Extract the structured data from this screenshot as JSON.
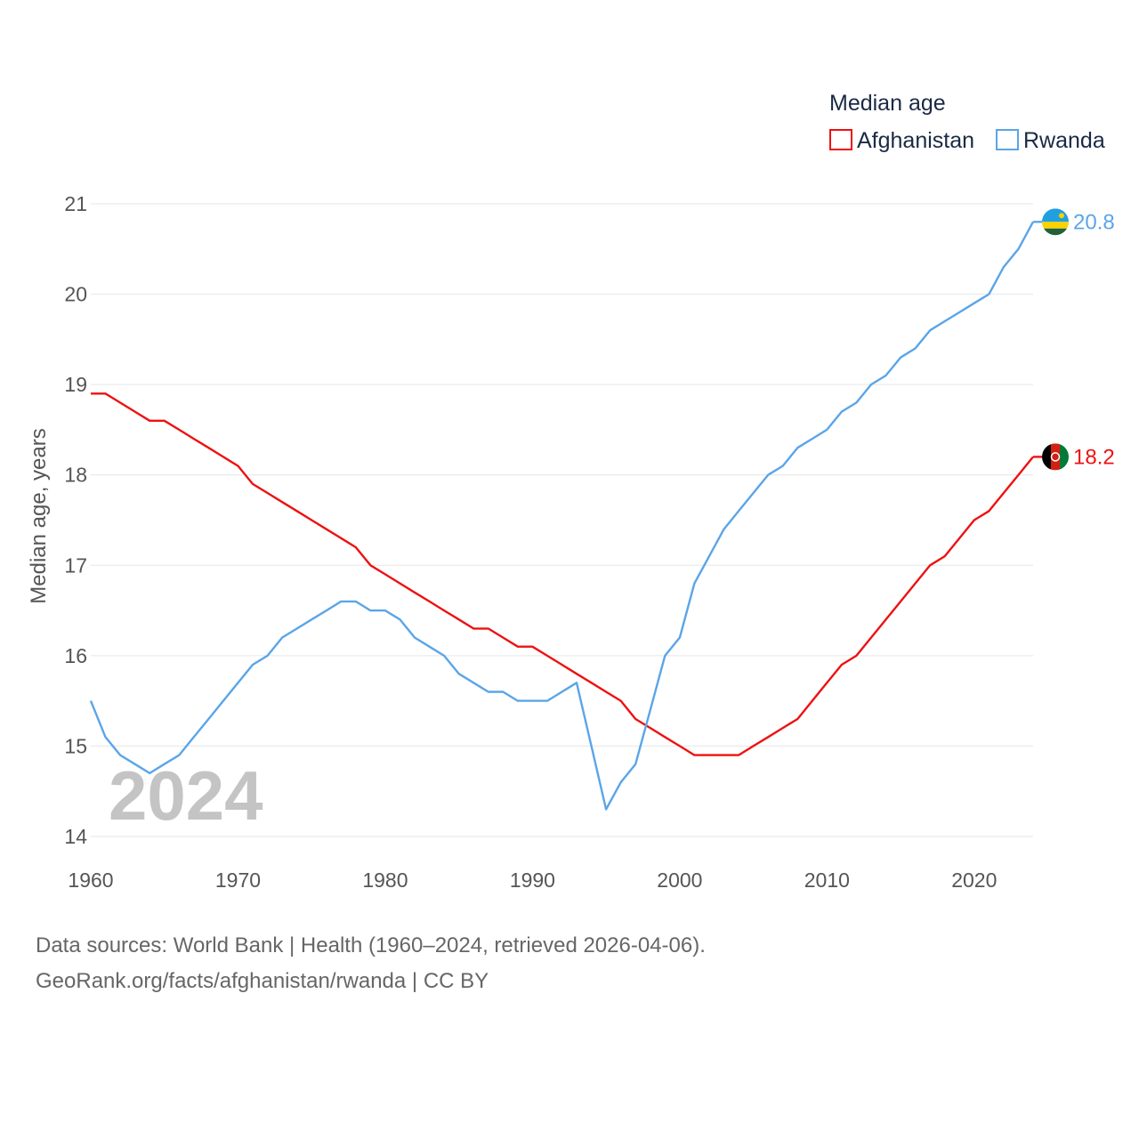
{
  "colors": {
    "afghanistan": "#ee1111",
    "rwanda": "#5aa5e8",
    "grid": "#e6e6e6",
    "text": "#555555",
    "watermark": "#c4c4c4"
  },
  "chart_data": {
    "type": "line",
    "title": "Median age",
    "ylabel": "Median age, years",
    "xlabel": "",
    "xlim": [
      1960,
      2024
    ],
    "ylim": [
      14,
      21
    ],
    "x_ticks": [
      1960,
      1970,
      1980,
      1990,
      2000,
      2010,
      2020
    ],
    "y_ticks": [
      14,
      15,
      16,
      17,
      18,
      19,
      20,
      21
    ],
    "grid": true,
    "legend_position": "top-right",
    "year_label": "2024",
    "x": [
      1960,
      1961,
      1962,
      1963,
      1964,
      1965,
      1966,
      1967,
      1968,
      1969,
      1970,
      1971,
      1972,
      1973,
      1974,
      1975,
      1976,
      1977,
      1978,
      1979,
      1980,
      1981,
      1982,
      1983,
      1984,
      1985,
      1986,
      1987,
      1988,
      1989,
      1990,
      1991,
      1992,
      1993,
      1994,
      1995,
      1996,
      1997,
      1998,
      1999,
      2000,
      2001,
      2002,
      2003,
      2004,
      2005,
      2006,
      2007,
      2008,
      2009,
      2010,
      2011,
      2012,
      2013,
      2014,
      2015,
      2016,
      2017,
      2018,
      2019,
      2020,
      2021,
      2022,
      2023,
      2024
    ],
    "series": [
      {
        "name": "Afghanistan",
        "color": "#ee1111",
        "end_label": "18.2",
        "flag_icon": "afghanistan-flag-icon",
        "values": [
          18.9,
          18.9,
          18.8,
          18.7,
          18.6,
          18.6,
          18.5,
          18.4,
          18.3,
          18.2,
          18.1,
          17.9,
          17.8,
          17.7,
          17.6,
          17.5,
          17.4,
          17.3,
          17.2,
          17.0,
          16.9,
          16.8,
          16.7,
          16.6,
          16.5,
          16.4,
          16.3,
          16.3,
          16.2,
          16.1,
          16.1,
          16.0,
          15.9,
          15.8,
          15.7,
          15.6,
          15.5,
          15.3,
          15.2,
          15.1,
          15.0,
          14.9,
          14.9,
          14.9,
          14.9,
          15.0,
          15.1,
          15.2,
          15.3,
          15.5,
          15.7,
          15.9,
          16.0,
          16.2,
          16.4,
          16.6,
          16.8,
          17.0,
          17.1,
          17.3,
          17.5,
          17.6,
          17.8,
          18.0,
          18.2
        ]
      },
      {
        "name": "Rwanda",
        "color": "#5aa5e8",
        "end_label": "20.8",
        "flag_icon": "rwanda-flag-icon",
        "values": [
          15.5,
          15.1,
          14.9,
          14.8,
          14.7,
          14.8,
          14.9,
          15.1,
          15.3,
          15.5,
          15.7,
          15.9,
          16.0,
          16.2,
          16.3,
          16.4,
          16.5,
          16.6,
          16.6,
          16.5,
          16.5,
          16.4,
          16.2,
          16.1,
          16.0,
          15.8,
          15.7,
          15.6,
          15.6,
          15.5,
          15.5,
          15.5,
          15.6,
          15.7,
          15.0,
          14.3,
          14.6,
          14.8,
          15.4,
          16.0,
          16.2,
          16.8,
          17.1,
          17.4,
          17.6,
          17.8,
          18.0,
          18.1,
          18.3,
          18.4,
          18.5,
          18.7,
          18.8,
          19.0,
          19.1,
          19.3,
          19.4,
          19.6,
          19.7,
          19.8,
          19.9,
          20.0,
          20.3,
          20.5,
          20.8
        ]
      }
    ]
  },
  "footer": {
    "sources": "Data sources: World Bank | Health (1960–2024, retrieved 2026-04-06).",
    "credit": "GeoRank.org/facts/afghanistan/rwanda | CC BY"
  }
}
